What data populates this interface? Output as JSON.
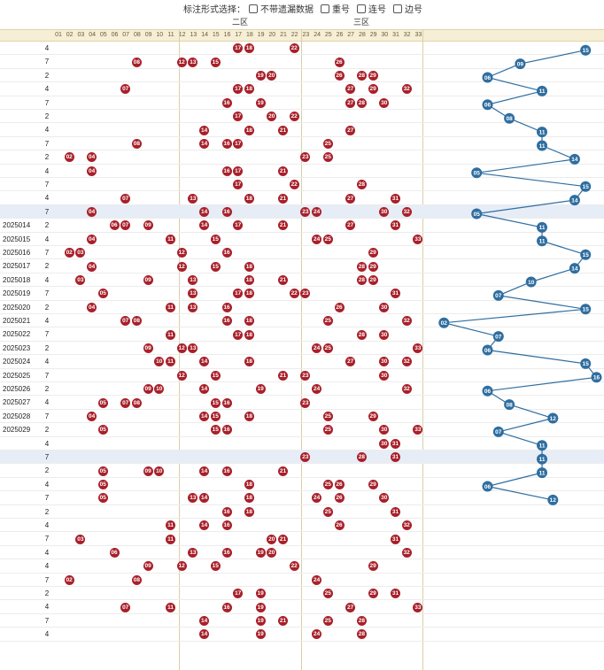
{
  "toolbar": {
    "label": "标注形式选择：",
    "options": [
      "不带遗漏数据",
      "重号",
      "连号",
      "边号"
    ]
  },
  "zones": [
    "二区",
    "三区"
  ],
  "columns": [
    "01",
    "02",
    "03",
    "04",
    "05",
    "06",
    "07",
    "08",
    "09",
    "10",
    "11",
    "12",
    "13",
    "14",
    "15",
    "16",
    "17",
    "18",
    "19",
    "20",
    "21",
    "22",
    "23",
    "24",
    "25",
    "26",
    "27",
    "28",
    "29",
    "30",
    "31",
    "32",
    "33"
  ],
  "colors": {
    "red_ball": "#a8202a",
    "blue_ball": "#2f6ea0",
    "header_bg": "#f6efd6"
  },
  "rows": [
    {
      "period": "",
      "sum": "4",
      "balls": [
        17,
        18,
        22
      ]
    },
    {
      "period": "",
      "sum": "7",
      "balls": [
        8,
        12,
        13,
        15,
        26
      ]
    },
    {
      "period": "",
      "sum": "2",
      "balls": [
        19,
        20,
        26,
        28,
        29
      ]
    },
    {
      "period": "",
      "sum": "4",
      "balls": [
        7,
        17,
        18,
        27,
        29,
        32
      ]
    },
    {
      "period": "",
      "sum": "7",
      "balls": [
        16,
        19,
        27,
        28,
        30
      ]
    },
    {
      "period": "",
      "sum": "2",
      "balls": [
        17,
        20,
        22
      ]
    },
    {
      "period": "",
      "sum": "4",
      "balls": [
        14,
        18,
        21,
        27
      ]
    },
    {
      "period": "",
      "sum": "7",
      "balls": [
        8,
        14,
        16,
        17,
        25
      ]
    },
    {
      "period": "",
      "sum": "2",
      "balls": [
        2,
        4,
        23,
        25
      ]
    },
    {
      "period": "",
      "sum": "4",
      "balls": [
        4,
        16,
        17,
        21
      ]
    },
    {
      "period": "",
      "sum": "7",
      "balls": [
        17,
        22,
        28
      ]
    },
    {
      "period": "",
      "sum": "4",
      "balls": [
        7,
        13,
        18,
        21,
        27,
        31
      ]
    },
    {
      "period": "",
      "sum": "7",
      "balls": [
        4,
        14,
        16,
        23,
        24,
        30,
        32
      ]
    },
    {
      "period": "2025014",
      "sum": "2",
      "balls": [
        6,
        7,
        9,
        14,
        17,
        21,
        27,
        31
      ]
    },
    {
      "period": "2025015",
      "sum": "4",
      "balls": [
        4,
        11,
        15,
        24,
        25,
        33
      ]
    },
    {
      "period": "2025016",
      "sum": "7",
      "balls": [
        2,
        3,
        12,
        16,
        29
      ]
    },
    {
      "period": "2025017",
      "sum": "2",
      "balls": [
        4,
        12,
        15,
        18,
        28,
        29
      ]
    },
    {
      "period": "2025018",
      "sum": "4",
      "balls": [
        3,
        9,
        13,
        18,
        21,
        28,
        29
      ]
    },
    {
      "period": "2025019",
      "sum": "7",
      "balls": [
        5,
        13,
        17,
        18,
        22,
        23,
        31
      ]
    },
    {
      "period": "2025020",
      "sum": "2",
      "balls": [
        4,
        11,
        13,
        16,
        26,
        30
      ]
    },
    {
      "period": "2025021",
      "sum": "4",
      "balls": [
        7,
        8,
        16,
        18,
        25,
        32
      ]
    },
    {
      "period": "2025022",
      "sum": "7",
      "balls": [
        11,
        17,
        18,
        28,
        30
      ]
    },
    {
      "period": "2025023",
      "sum": "2",
      "balls": [
        9,
        12,
        13,
        24,
        25,
        33
      ]
    },
    {
      "period": "2025024",
      "sum": "4",
      "balls": [
        10,
        11,
        14,
        18,
        27,
        30,
        32
      ]
    },
    {
      "period": "2025025",
      "sum": "7",
      "balls": [
        12,
        15,
        21,
        23,
        30
      ]
    },
    {
      "period": "2025026",
      "sum": "2",
      "balls": [
        9,
        10,
        14,
        19,
        24,
        32
      ]
    },
    {
      "period": "2025027",
      "sum": "4",
      "balls": [
        5,
        7,
        8,
        15,
        16,
        23
      ]
    },
    {
      "period": "2025028",
      "sum": "7",
      "balls": [
        4,
        14,
        15,
        18,
        25,
        29
      ]
    },
    {
      "period": "2025029",
      "sum": "2",
      "balls": [
        5,
        15,
        16,
        25,
        30,
        33
      ]
    },
    {
      "period": "",
      "sum": "4",
      "balls": [
        30,
        31
      ]
    },
    {
      "period": "",
      "sum": "7",
      "balls": [
        23,
        28,
        31
      ]
    },
    {
      "period": "",
      "sum": "2",
      "balls": [
        5,
        9,
        10,
        14,
        16,
        21
      ]
    },
    {
      "period": "",
      "sum": "4",
      "balls": [
        5,
        18,
        25,
        26,
        29
      ]
    },
    {
      "period": "",
      "sum": "7",
      "balls": [
        5,
        13,
        14,
        18,
        24,
        26,
        30
      ]
    },
    {
      "period": "",
      "sum": "2",
      "balls": [
        16,
        18,
        25,
        31
      ]
    },
    {
      "period": "",
      "sum": "4",
      "balls": [
        11,
        14,
        16,
        26,
        32
      ]
    },
    {
      "period": "",
      "sum": "7",
      "balls": [
        3,
        11,
        20,
        21,
        31
      ]
    },
    {
      "period": "",
      "sum": "4",
      "balls": [
        6,
        13,
        16,
        19,
        20,
        32
      ]
    },
    {
      "period": "",
      "sum": "4",
      "balls": [
        9,
        12,
        15,
        22,
        29
      ]
    },
    {
      "period": "",
      "sum": "7",
      "balls": [
        2,
        8,
        24
      ]
    },
    {
      "period": "",
      "sum": "2",
      "balls": [
        17,
        19,
        25,
        29,
        31
      ]
    },
    {
      "period": "",
      "sum": "4",
      "balls": [
        7,
        11,
        16,
        19,
        27,
        33
      ]
    },
    {
      "period": "",
      "sum": "7",
      "balls": [
        14,
        19,
        21,
        25,
        28
      ]
    },
    {
      "period": "",
      "sum": "4",
      "balls": [
        14,
        19,
        24,
        28
      ]
    }
  ],
  "blue": [
    15,
    9,
    6,
    11,
    6,
    8,
    11,
    11,
    14,
    5,
    15,
    14,
    5,
    11,
    11,
    15,
    14,
    10,
    7,
    15,
    2,
    7,
    6,
    15,
    16,
    6,
    8,
    12,
    7,
    11,
    11,
    11,
    6,
    12
  ]
}
